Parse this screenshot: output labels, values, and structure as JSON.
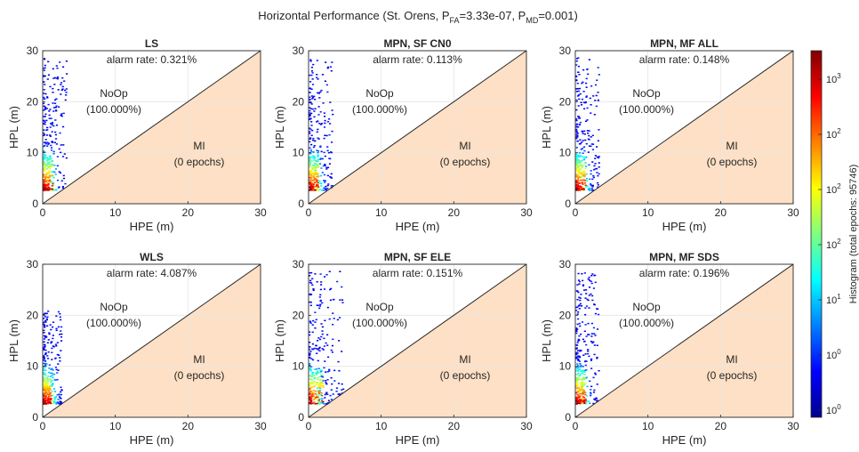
{
  "figure": {
    "title_main": "Horizontal Performance (St. Orens, P",
    "title_sub1": "FA",
    "title_mid": "=3.33e-07, P",
    "title_sub2": "MD",
    "title_end": "=0.001)"
  },
  "chart_data": [
    {
      "type": "heatmap",
      "title": "LS",
      "alarm_rate": "alarm rate: 0.321%",
      "noop_label": "NoOp",
      "noop_pct": "(100.000%)",
      "mi_label": "MI",
      "mi_epochs": "(0 epochs)",
      "xlabel": "HPE (m)",
      "ylabel": "HPL (m)",
      "xlim": [
        0,
        30
      ],
      "ylim": [
        0,
        30
      ],
      "xticks": [
        "0",
        "10",
        "20",
        "30"
      ],
      "yticks": [
        "0",
        "10",
        "20",
        "30"
      ],
      "grid": true,
      "mi_region": "y < x",
      "spread": "medium"
    },
    {
      "type": "heatmap",
      "title": "MPN, SF CN0",
      "alarm_rate": "alarm rate: 0.113%",
      "noop_label": "NoOp",
      "noop_pct": "(100.000%)",
      "mi_label": "MI",
      "mi_epochs": "(0 epochs)",
      "xlabel": "HPE (m)",
      "ylabel": "HPL (m)",
      "xlim": [
        0,
        30
      ],
      "ylim": [
        0,
        30
      ],
      "xticks": [
        "0",
        "10",
        "20",
        "30"
      ],
      "yticks": [
        "0",
        "10",
        "20",
        "30"
      ],
      "grid": true,
      "mi_region": "y < x",
      "spread": "medium"
    },
    {
      "type": "heatmap",
      "title": "MPN, MF ALL",
      "alarm_rate": "alarm rate: 0.148%",
      "noop_label": "NoOp",
      "noop_pct": "(100.000%)",
      "mi_label": "MI",
      "mi_epochs": "(0 epochs)",
      "xlabel": "HPE (m)",
      "ylabel": "HPL (m)",
      "xlim": [
        0,
        30
      ],
      "ylim": [
        0,
        30
      ],
      "xticks": [
        "0",
        "10",
        "20",
        "30"
      ],
      "yticks": [
        "0",
        "10",
        "20",
        "30"
      ],
      "grid": true,
      "mi_region": "y < x",
      "spread": "medium"
    },
    {
      "type": "heatmap",
      "title": "WLS",
      "alarm_rate": "alarm rate: 4.087%",
      "noop_label": "NoOp",
      "noop_pct": "(100.000%)",
      "mi_label": "MI",
      "mi_epochs": "(0 epochs)",
      "xlabel": "HPE (m)",
      "ylabel": "HPL (m)",
      "xlim": [
        0,
        30
      ],
      "ylim": [
        0,
        30
      ],
      "xticks": [
        "0",
        "10",
        "20",
        "30"
      ],
      "yticks": [
        "0",
        "10",
        "20",
        "30"
      ],
      "grid": true,
      "mi_region": "y < x",
      "spread": "low"
    },
    {
      "type": "heatmap",
      "title": "MPN, SF ELE",
      "alarm_rate": "alarm rate: 0.151%",
      "noop_label": "NoOp",
      "noop_pct": "(100.000%)",
      "mi_label": "MI",
      "mi_epochs": "(0 epochs)",
      "xlabel": "HPE (m)",
      "ylabel": "HPL (m)",
      "xlim": [
        0,
        30
      ],
      "ylim": [
        0,
        30
      ],
      "xticks": [
        "0",
        "10",
        "20",
        "30"
      ],
      "yticks": [
        "0",
        "10",
        "20",
        "30"
      ],
      "grid": true,
      "mi_region": "y < x",
      "spread": "high"
    },
    {
      "type": "heatmap",
      "title": "MPN, MF SDS",
      "alarm_rate": "alarm rate: 0.196%",
      "noop_label": "NoOp",
      "noop_pct": "(100.000%)",
      "mi_label": "MI",
      "mi_epochs": "(0 epochs)",
      "xlabel": "HPE (m)",
      "ylabel": "HPL (m)",
      "xlim": [
        0,
        30
      ],
      "ylim": [
        0,
        30
      ],
      "xticks": [
        "0",
        "10",
        "20",
        "30"
      ],
      "yticks": [
        "0",
        "10",
        "20",
        "30"
      ],
      "grid": true,
      "mi_region": "y < x",
      "spread": "medium"
    }
  ],
  "colorbar": {
    "label": "Histogram (total epochs: 95746)",
    "scale": "log",
    "colormap": "jet",
    "ticks": [
      {
        "base": "10",
        "exp": "3"
      },
      {
        "base": "10",
        "exp": "2"
      },
      {
        "base": "10",
        "exp": "2"
      },
      {
        "base": "10",
        "exp": "2"
      },
      {
        "base": "10",
        "exp": "1"
      },
      {
        "base": "10",
        "exp": "0"
      },
      {
        "base": "10",
        "exp": "0"
      }
    ]
  },
  "colors": {
    "mi_fill": "#fde0c5",
    "axis": "#262626",
    "grid": "#e6e6e6",
    "text": "#262626"
  }
}
